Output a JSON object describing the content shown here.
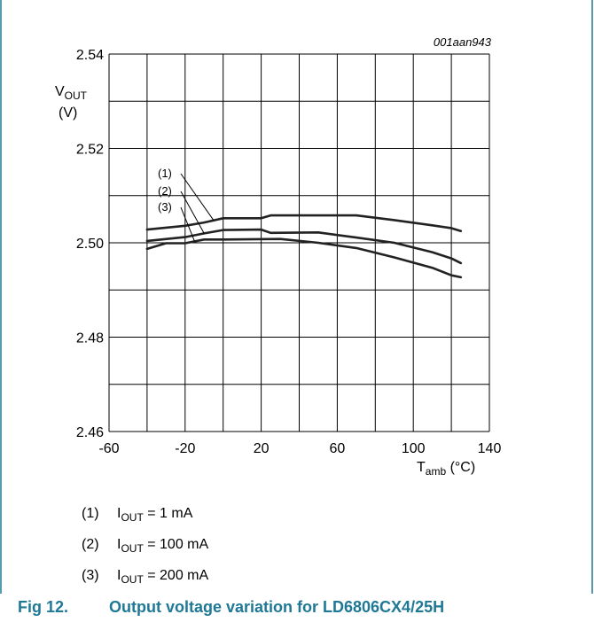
{
  "figure": {
    "code": "001aan943",
    "caption_number": "Fig 12.",
    "caption_text": "Output voltage variation for LD6806CX4/25H",
    "caption_color": "#1e7896",
    "frame_color": "#1e7896"
  },
  "chart_data": {
    "type": "line",
    "xlabel": {
      "main": "T",
      "sub": "amb",
      "unit": "(°C)"
    },
    "ylabel": {
      "main": "V",
      "sub": "OUT",
      "unit": "(V)"
    },
    "xlim": [
      -60,
      140
    ],
    "ylim": [
      2.46,
      2.54
    ],
    "x_ticks": [
      -60,
      -20,
      20,
      60,
      100,
      140
    ],
    "x_tick_labels": [
      "-60",
      "-20",
      "20",
      "60",
      "100",
      "140"
    ],
    "y_ticks": [
      2.46,
      2.48,
      2.5,
      2.52,
      2.54
    ],
    "y_tick_labels": [
      "2.46",
      "2.48",
      "2.50",
      "2.52",
      "2.54"
    ],
    "x_grid_step": 20,
    "y_grid_step": 0.01,
    "grid": true,
    "series": [
      {
        "name": "(1)",
        "x": [
          -40,
          -20,
          -10,
          0,
          20,
          25,
          40,
          60,
          70,
          90,
          110,
          120,
          125
        ],
        "y": [
          2.5028,
          2.5036,
          2.5043,
          2.5052,
          2.5052,
          2.5058,
          2.5058,
          2.5058,
          2.5058,
          2.5048,
          2.5037,
          2.5031,
          2.5025
        ]
      },
      {
        "name": "(2)",
        "x": [
          -40,
          -20,
          -10,
          0,
          20,
          25,
          50,
          70,
          90,
          110,
          120,
          125
        ],
        "y": [
          2.5004,
          2.5012,
          2.502,
          2.5027,
          2.5028,
          2.5021,
          2.5022,
          2.5011,
          2.5,
          2.498,
          2.4967,
          2.4957
        ]
      },
      {
        "name": "(3)",
        "x": [
          -40,
          -30,
          -25,
          -20,
          -10,
          0,
          30,
          50,
          70,
          90,
          110,
          120,
          125
        ],
        "y": [
          2.4987,
          2.4999,
          2.4999,
          2.4999,
          2.5007,
          2.5007,
          2.5008,
          2.5,
          2.4989,
          2.4969,
          2.4947,
          2.4931,
          2.4927
        ]
      }
    ],
    "legend": [
      {
        "num": "(1)",
        "sym": "I",
        "sub": "OUT",
        "text": " = 1 mA"
      },
      {
        "num": "(2)",
        "sym": "I",
        "sub": "OUT",
        "text": " = 100 mA"
      },
      {
        "num": "(3)",
        "sym": "I",
        "sub": "OUT",
        "text": " = 200 mA"
      }
    ],
    "line_color": "#222222",
    "grid_color": "#000000"
  }
}
